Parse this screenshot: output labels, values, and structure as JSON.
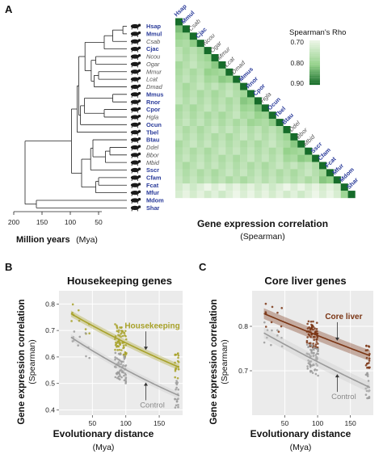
{
  "panels": {
    "a": "A",
    "b": "B",
    "c": "C"
  },
  "chart_data": [
    {
      "type": "heatmap",
      "species": [
        {
          "code": "Hsap",
          "bold": true
        },
        {
          "code": "Mmul",
          "bold": true
        },
        {
          "code": "Csab",
          "bold": false
        },
        {
          "code": "Cjac",
          "bold": true
        },
        {
          "code": "Ncou",
          "bold": false
        },
        {
          "code": "Ogar",
          "bold": false
        },
        {
          "code": "Mmur",
          "bold": false
        },
        {
          "code": "Lcat",
          "bold": false
        },
        {
          "code": "Dmad",
          "bold": false
        },
        {
          "code": "Mmus",
          "bold": true
        },
        {
          "code": "Rnor",
          "bold": true
        },
        {
          "code": "Cpor",
          "bold": true
        },
        {
          "code": "Hgla",
          "bold": false
        },
        {
          "code": "Ocun",
          "bold": true
        },
        {
          "code": "Tbel",
          "bold": true
        },
        {
          "code": "Btau",
          "bold": true
        },
        {
          "code": "Ddel",
          "bold": false
        },
        {
          "code": "Bbor",
          "bold": false
        },
        {
          "code": "Mbid",
          "bold": false
        },
        {
          "code": "Sscr",
          "bold": true
        },
        {
          "code": "Cfam",
          "bold": true
        },
        {
          "code": "Fcat",
          "bold": true
        },
        {
          "code": "Mfur",
          "bold": true
        },
        {
          "code": "Mdom",
          "bold": true
        },
        {
          "code": "Shar",
          "bold": true
        }
      ],
      "color_legend": {
        "title": "Spearman's Rho",
        "ticks": [
          "0.70",
          "0.80",
          "0.90"
        ],
        "range": [
          0.7,
          0.9
        ]
      },
      "xlabel": "Gene expression correlation",
      "xlabel_sub": "(Spearman)",
      "tree_axis": {
        "ticks": [
          "200",
          "150",
          "100",
          "50"
        ],
        "label_bold": "Million years",
        "label_unit": "(Mya)"
      }
    },
    {
      "type": "scatter",
      "title": "Housekeeping genes",
      "ylabel": "Gene expression correlation",
      "ylabel_sub": "(Spearman)",
      "xlabel": "Evolutionary distance",
      "xlabel_sub": "(Mya)",
      "xlim": [
        0,
        185
      ],
      "ylim": [
        0.38,
        0.85
      ],
      "xticks": [
        "50",
        "100",
        "150"
      ],
      "yticks": [
        "0.4",
        "0.5",
        "0.6",
        "0.7",
        "0.8"
      ],
      "series": [
        {
          "name": "Housekeeping",
          "color": "#a8a22a",
          "fit": {
            "a": 0.79,
            "b": -0.0019
          }
        },
        {
          "name": "Control",
          "color": "#9a9a9a",
          "fit": {
            "a": 0.705,
            "b": -0.00245
          }
        }
      ]
    },
    {
      "type": "scatter",
      "title": "Core liver genes",
      "ylabel": "Gene expression correlation",
      "ylabel_sub": "(Spearman)",
      "xlabel": "Evolutionary distance",
      "xlabel_sub": "(Mya)",
      "xlim": [
        0,
        185
      ],
      "ylim": [
        0.6,
        0.88
      ],
      "xticks": [
        "50",
        "100",
        "150"
      ],
      "yticks": [
        "0.7",
        "0.8"
      ],
      "series": [
        {
          "name": "Core liver",
          "color": "#7a3514",
          "fit": {
            "a": 0.84,
            "b": -0.00075
          }
        },
        {
          "name": "Control",
          "color": "#9a9a9a",
          "fit": {
            "a": 0.8,
            "b": -0.00105
          }
        }
      ]
    }
  ]
}
